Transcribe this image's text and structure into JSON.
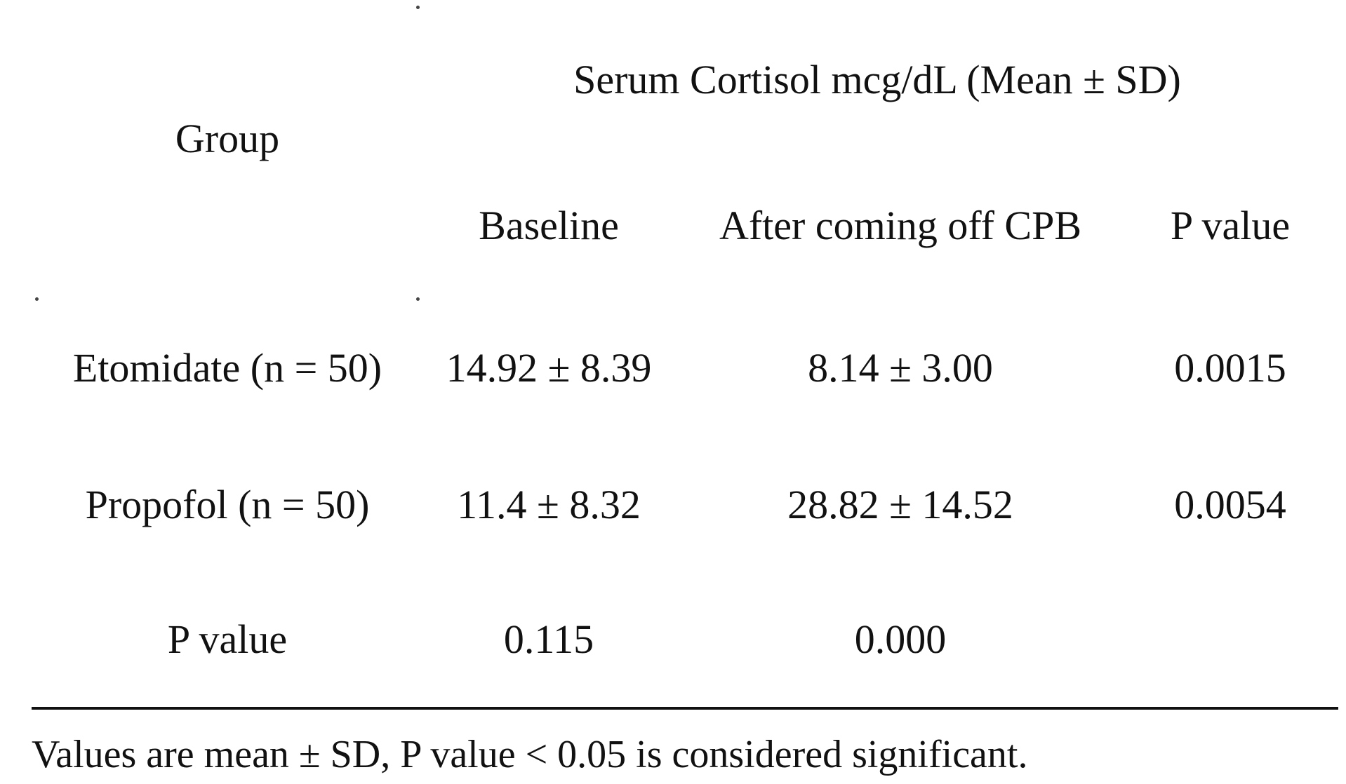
{
  "table": {
    "header": {
      "group": "Group",
      "span_title": "Serum Cortisol mcg/dL (Mean ± SD)",
      "columns": [
        "Baseline",
        "After coming off CPB",
        "P value"
      ]
    },
    "rows": [
      {
        "label": "Etomidate (n = 50)",
        "cells": [
          "14.92 ± 8.39",
          "8.14 ± 3.00",
          "0.0015"
        ]
      },
      {
        "label": "Propofol (n = 50)",
        "cells": [
          "11.4 ± 8.32",
          "28.82 ± 14.52",
          "0.0054"
        ]
      },
      {
        "label": "P value",
        "cells": [
          "0.115",
          "0.000",
          ""
        ]
      }
    ],
    "footnote": "Values are mean ± SD, P value < 0.05 is considered significant."
  }
}
